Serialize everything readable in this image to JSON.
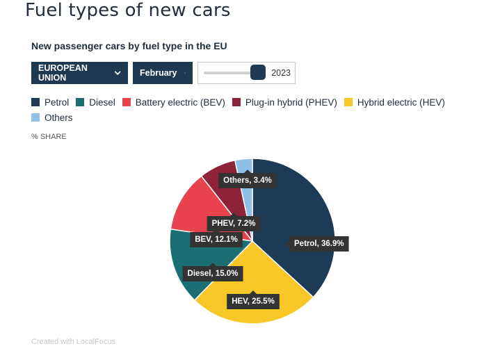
{
  "page_title": "Fuel types of new cars",
  "chart_title": "New passenger cars by fuel type in the EU",
  "controls": {
    "region_label": "EUROPEAN UNION",
    "month_label": "February",
    "year_label": "2023",
    "year_slider_position": 1.0
  },
  "unit_label": "% SHARE",
  "credit": "Created with LocalFocus",
  "legend": [
    {
      "label": "Petrol",
      "color": "#1d3a56"
    },
    {
      "label": "Diesel",
      "color": "#1b6e73"
    },
    {
      "label": "Battery electric (BEV)",
      "color": "#e8434f"
    },
    {
      "label": "Plug-in hybrid (PHEV)",
      "color": "#8e2238"
    },
    {
      "label": "Hybrid electric (HEV)",
      "color": "#f7c627"
    },
    {
      "label": "Others",
      "color": "#8fc1e8"
    }
  ],
  "chart_data": {
    "type": "pie",
    "title": "New passenger cars by fuel type in the EU",
    "unit": "% SHARE",
    "slices": [
      {
        "name": "Petrol",
        "value": 36.9,
        "label": "Petrol, 36.9%",
        "color": "#1d3a56"
      },
      {
        "name": "HEV",
        "value": 25.5,
        "label": "HEV, 25.5%",
        "color": "#f7c627"
      },
      {
        "name": "Diesel",
        "value": 15.0,
        "label": "Diesel, 15.0%",
        "color": "#1b6e73"
      },
      {
        "name": "BEV",
        "value": 12.1,
        "label": "BEV, 12.1%",
        "color": "#e8434f"
      },
      {
        "name": "PHEV",
        "value": 7.2,
        "label": "PHEV, 7.2%",
        "color": "#8e2238"
      },
      {
        "name": "Others",
        "value": 3.4,
        "label": "Others, 3.4%",
        "color": "#8fc1e8"
      }
    ]
  }
}
